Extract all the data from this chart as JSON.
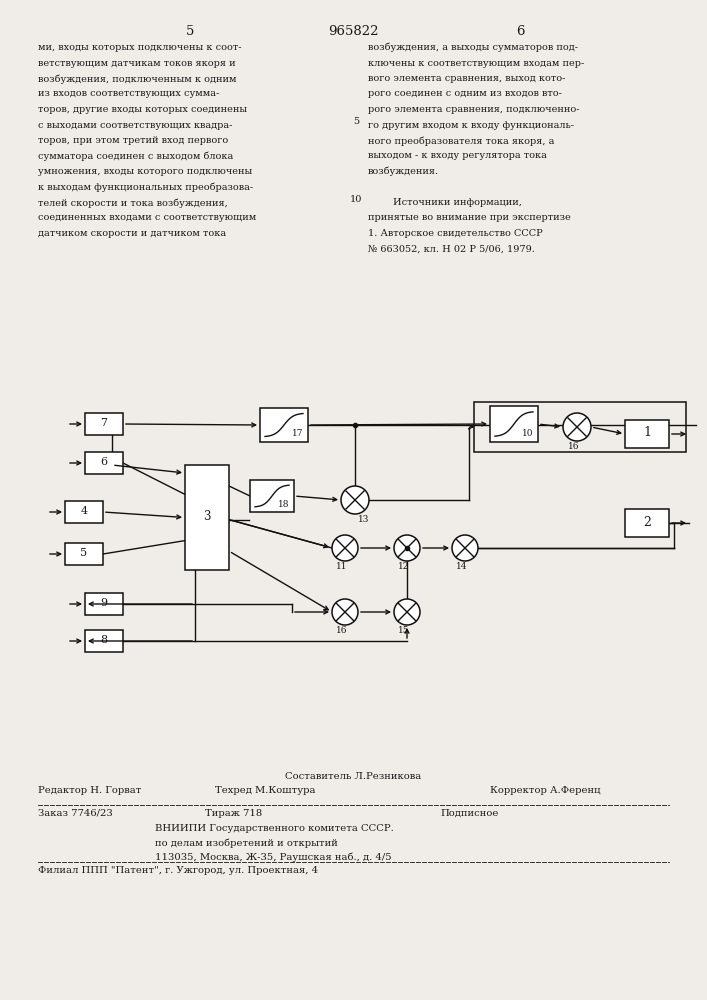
{
  "page_title": "965822",
  "page_left": "5",
  "page_right": "6",
  "bg_color": "#f0ede8",
  "text_color": "#1a1a1a",
  "left_text": [
    "ми, входы которых подключены к соот-",
    "ветствующим датчикам токов якоря и",
    "возбуждения, подключенным к одним",
    "из входов соответствующих сумма-",
    "торов, другие входы которых соединены",
    "с выходами соответствующих квадра-",
    "торов, при этом третий вход первого",
    "сумматора соединен с выходом блока",
    "умножения, входы которого подключены",
    "к выходам функциональных преобразова-",
    "телей скорости и тока возбуждения,",
    "соединенных входами с соответствующим",
    "датчиком скорости и датчиком тока"
  ],
  "right_text": [
    "возбуждения, а выходы сумматоров под-",
    "ключены к соответствующим входам пер-",
    "вого элемента сравнения, выход кото-",
    "рого соединен с одним из входов вто-",
    "рого элемента сравнения, подключенно-",
    "го другим входом к входу функциональ-",
    "ного преобразователя тока якоря, а",
    "выходом - к входу регулятора тока",
    "возбуждения.",
    "",
    "        Источники информации,",
    "принятые во внимание при экспертизе",
    "1. Авторское свидетельство СССР",
    "№ 663052, кл. Н 02 Р 5/06, 1979."
  ],
  "line_num_5": "5",
  "line_num_10": "10",
  "footer_sestavitel": "Составитель Л.Резникова",
  "footer_redaktor": "Редактор Н. Горват",
  "footer_tekhred": "Техред М.Коштура",
  "footer_korrektor": "Корректор А.Ференц",
  "footer_zakaz": "Заказ 7746/23",
  "footer_tirazh": "Тираж 718",
  "footer_podpisnoe": "Подписное",
  "footer_vniip1": "ВНИИПИ Государственного комитета СССР.",
  "footer_vniip2": "по делам изобретений и открытий",
  "footer_vniip3": "113035, Москва, Ж-35, Раушская наб., д. 4/5",
  "footer_filial": "Филиал ППП \"Патент\", г. Ужгород, ул. Проектная, 4"
}
